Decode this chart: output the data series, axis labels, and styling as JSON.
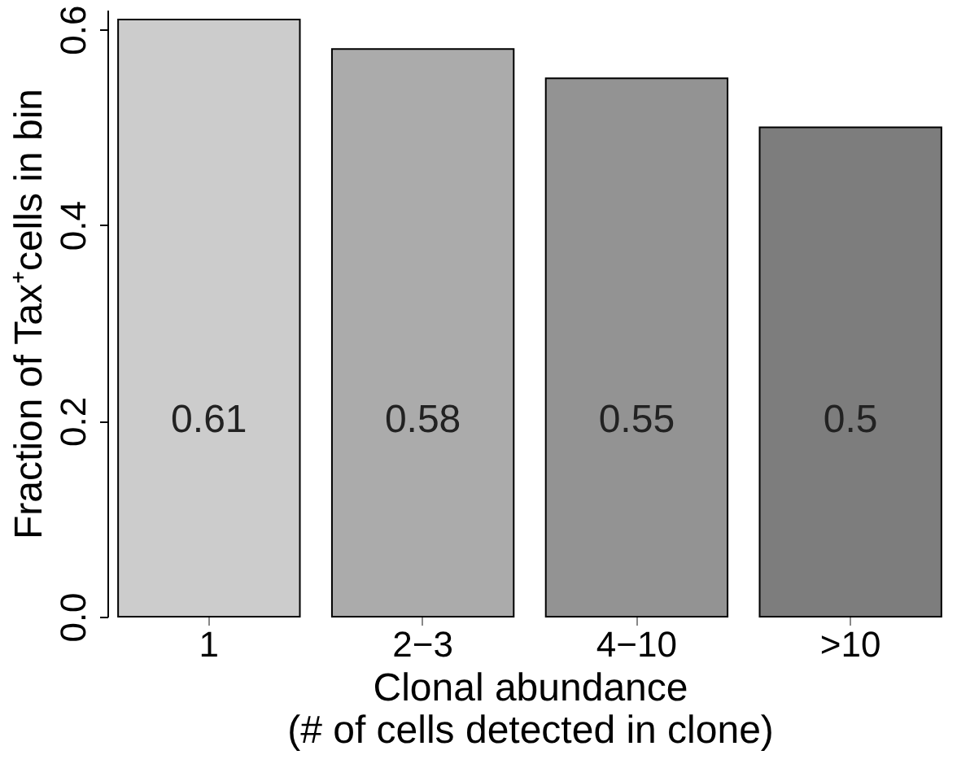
{
  "chart_data": {
    "type": "bar",
    "categories": [
      "1",
      "2−3",
      "4−10",
      ">10"
    ],
    "values": [
      0.61,
      0.58,
      0.55,
      0.5
    ],
    "colors": [
      "#cccccc",
      "#ababab",
      "#939393",
      "#7d7d7d"
    ],
    "ylim": [
      0,
      0.62
    ],
    "yticks": [
      {
        "value": 0,
        "label": "0.0"
      },
      0.2,
      0.4,
      0.6
    ],
    "xlabel": "Clonal abundance\n(# of cells detected in clone)",
    "ylabel": "Fraction of Tax⁺cells in bin",
    "data_labels": true,
    "grid": false
  }
}
